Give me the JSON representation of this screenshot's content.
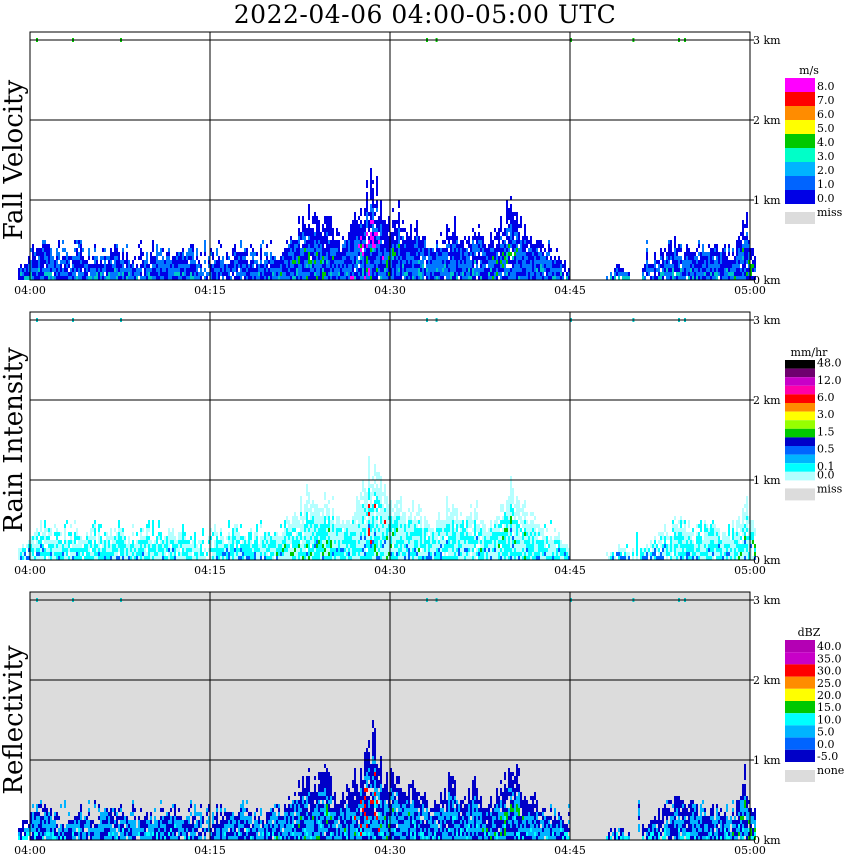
{
  "title": "2022-04-06   04:00-05:00 UTC",
  "chart_data": [
    {
      "type": "heatmap",
      "title": "Fall Velocity",
      "xlabel": "",
      "ylabel": "Fall Velocity",
      "x_ticks": [
        "04:00",
        "04:15",
        "04:30",
        "04:45",
        "05:00"
      ],
      "y_ticks": [
        "0 km",
        "1 km",
        "2 km",
        "3 km"
      ],
      "ylim_km": [
        0,
        3
      ],
      "background": "#ffffff",
      "legend": {
        "unit": "m/s",
        "placement": "right",
        "entries": [
          {
            "label": "8.0",
            "color": "#ff00ff"
          },
          {
            "label": "7.0",
            "color": "#ff0000"
          },
          {
            "label": "6.0",
            "color": "#ff8c00"
          },
          {
            "label": "5.0",
            "color": "#ffff00"
          },
          {
            "label": "4.0",
            "color": "#00c800"
          },
          {
            "label": "3.0",
            "color": "#00ffc8"
          },
          {
            "label": "2.0",
            "color": "#00b4ff"
          },
          {
            "label": "1.0",
            "color": "#0064ff"
          },
          {
            "label": "0.0",
            "color": "#0000e6"
          }
        ],
        "missing": {
          "label": "miss",
          "color": "#dcdcdc"
        }
      },
      "palette": {
        "low": "#0000e6",
        "mid": "#0078ff",
        "high": "#00c8c8",
        "peak": "#00c800",
        "extra": "#ff00ff"
      }
    },
    {
      "type": "heatmap",
      "title": "Rain Intensity",
      "xlabel": "",
      "ylabel": "Rain Intensity",
      "x_ticks": [
        "04:00",
        "04:15",
        "04:30",
        "04:45",
        "05:00"
      ],
      "y_ticks": [
        "0 km",
        "1 km",
        "2 km",
        "3 km"
      ],
      "ylim_km": [
        0,
        3
      ],
      "background": "#ffffff",
      "legend": {
        "unit": "mm/hr",
        "placement": "right",
        "entries": [
          {
            "label": "48.0",
            "color": "#000000"
          },
          {
            "label": "",
            "color": "#6e006e"
          },
          {
            "label": "12.0",
            "color": "#c800c8"
          },
          {
            "label": "",
            "color": "#ff00aa"
          },
          {
            "label": "6.0",
            "color": "#ff0000"
          },
          {
            "label": "",
            "color": "#ff8c00"
          },
          {
            "label": "3.0",
            "color": "#ffff00"
          },
          {
            "label": "",
            "color": "#96ff00"
          },
          {
            "label": "1.5",
            "color": "#00c800"
          },
          {
            "label": "",
            "color": "#0000c8"
          },
          {
            "label": "0.5",
            "color": "#0064ff"
          },
          {
            "label": "",
            "color": "#00b4ff"
          },
          {
            "label": "0.1",
            "color": "#00ffff"
          },
          {
            "label": "0.0",
            "color": "#b4ffff"
          }
        ],
        "missing": {
          "label": "miss",
          "color": "#dcdcdc"
        }
      },
      "palette": {
        "low": "#b4ffff",
        "mid": "#00ffff",
        "high": "#0064ff",
        "peak": "#00c800",
        "extra": "#ff0000"
      }
    },
    {
      "type": "heatmap",
      "title": "Reflectivity",
      "xlabel": "",
      "ylabel": "Reflectivity",
      "x_ticks": [
        "04:00",
        "04:15",
        "04:30",
        "04:45",
        "05:00"
      ],
      "y_ticks": [
        "0 km",
        "1 km",
        "2 km",
        "3 km"
      ],
      "ylim_km": [
        0,
        3
      ],
      "background": "#dcdcdc",
      "legend": {
        "unit": "dBZ",
        "placement": "right",
        "entries": [
          {
            "label": "40.0",
            "color": "#b400b4"
          },
          {
            "label": "35.0",
            "color": "#c800c8"
          },
          {
            "label": "30.0",
            "color": "#ff0000"
          },
          {
            "label": "25.0",
            "color": "#ff8c00"
          },
          {
            "label": "20.0",
            "color": "#ffff00"
          },
          {
            "label": "15.0",
            "color": "#00c800"
          },
          {
            "label": "10.0",
            "color": "#00ffff"
          },
          {
            "label": "5.0",
            "color": "#00b4ff"
          },
          {
            "label": "0.0",
            "color": "#0064ff"
          },
          {
            "label": "-5.0",
            "color": "#0000c8"
          }
        ],
        "missing": {
          "label": "none",
          "color": "#dcdcdc"
        }
      },
      "palette": {
        "low": "#0000c8",
        "mid": "#00b4ff",
        "high": "#00ffff",
        "peak": "#00c800",
        "extra": "#ff0000"
      }
    }
  ]
}
